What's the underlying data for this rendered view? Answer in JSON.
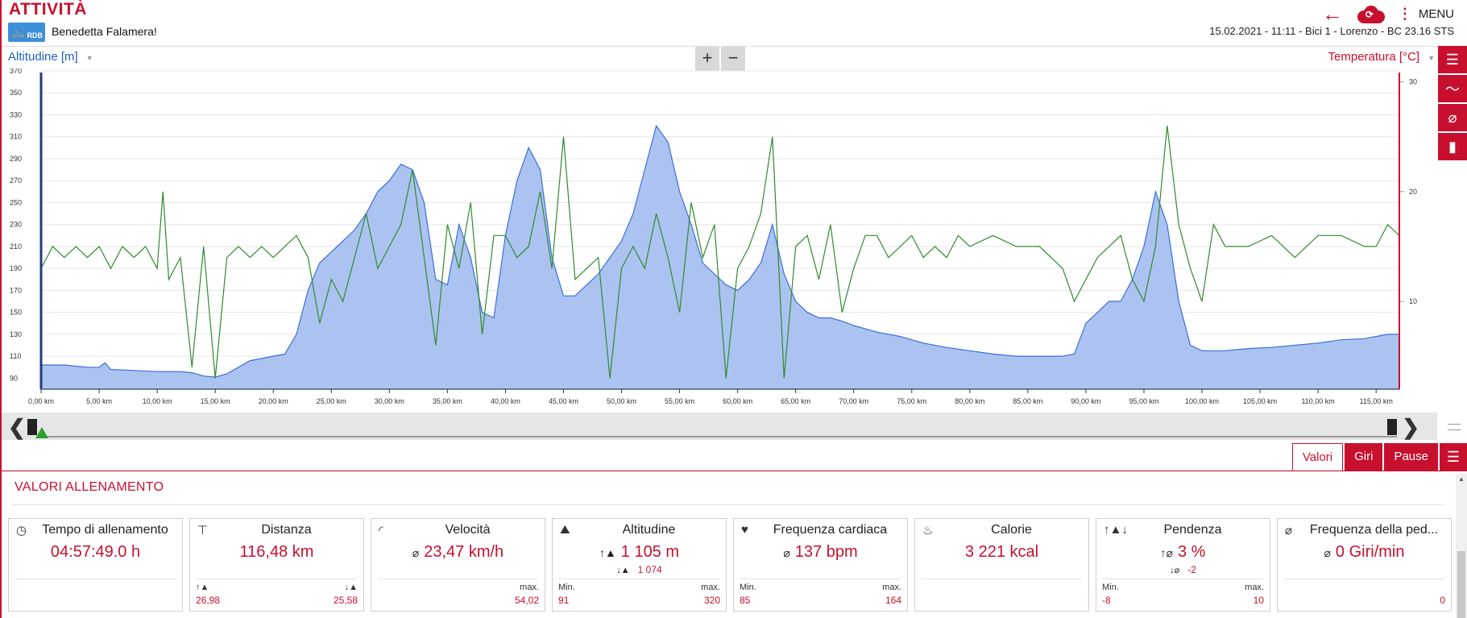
{
  "header": {
    "title": "ATTIVITÀ",
    "logo_text": "RDB",
    "user": "Benedetta Falamera!",
    "menu_label": "MENU",
    "session": "15.02.2021  -  11:11  -  Bici 1  -  Lorenzo  -  BC 23.16 STS"
  },
  "chart": {
    "left_selector": "Altitudine [m]",
    "right_selector": "Temperatura [°C]",
    "zoom_in": "+",
    "zoom_out": "−"
  },
  "chart_data": {
    "type": "area",
    "x_unit": "km",
    "xlim": [
      0,
      117
    ],
    "x_ticks": [
      "0,00 km",
      "5,00 km",
      "10,00 km",
      "15,00 km",
      "20,00 km",
      "25,00 km",
      "30,00 km",
      "35,00 km",
      "40,00 km",
      "45,00 km",
      "50,00 km",
      "55,00 km",
      "60,00 km",
      "65,00 km",
      "70,00 km",
      "75,00 km",
      "80,00 km",
      "85,00 km",
      "90,00 km",
      "95,00 km",
      "100,00 km",
      "105,00 km",
      "110,00 km",
      "115,00 km"
    ],
    "y_left": {
      "label": "Altitudine [m]",
      "ylim": [
        80,
        370
      ],
      "ticks": [
        90,
        110,
        130,
        150,
        170,
        190,
        210,
        230,
        250,
        270,
        290,
        310,
        330,
        350,
        370
      ]
    },
    "y_right": {
      "label": "Temperatura [°C]",
      "ylim": [
        2,
        31
      ],
      "ticks": [
        10,
        20,
        30
      ]
    },
    "series": [
      {
        "name": "Altitudine [m]",
        "color": "#a8c0f0",
        "stroke": "#3a6fd8",
        "x": [
          0,
          2,
          4,
          5,
          5.5,
          6,
          8,
          10,
          12,
          13,
          14,
          15,
          16,
          17,
          18,
          19,
          20,
          21,
          22,
          23,
          24,
          25,
          26,
          27,
          28,
          29,
          30,
          31,
          32,
          33,
          34,
          35,
          36,
          37,
          38,
          39,
          40,
          41,
          42,
          43,
          44,
          45,
          46,
          47,
          48,
          49,
          50,
          51,
          52,
          53,
          54,
          55,
          56,
          57,
          58,
          59,
          60,
          61,
          62,
          63,
          64,
          65,
          66,
          67,
          68,
          69,
          70,
          72,
          74,
          76,
          78,
          80,
          82,
          84,
          86,
          88,
          89,
          90,
          91,
          92,
          93,
          94,
          95,
          96,
          97,
          98,
          99,
          100,
          102,
          104,
          106,
          108,
          110,
          112,
          114,
          115,
          116,
          117
        ],
        "values": [
          102,
          102,
          100,
          100,
          104,
          98,
          97,
          96,
          96,
          95,
          92,
          91,
          94,
          100,
          106,
          108,
          110,
          112,
          130,
          170,
          195,
          205,
          215,
          225,
          240,
          260,
          270,
          285,
          280,
          250,
          180,
          175,
          230,
          200,
          150,
          145,
          220,
          270,
          300,
          280,
          200,
          165,
          165,
          175,
          185,
          200,
          215,
          240,
          280,
          320,
          305,
          260,
          230,
          195,
          185,
          175,
          170,
          180,
          195,
          230,
          185,
          160,
          150,
          145,
          145,
          142,
          138,
          132,
          128,
          122,
          118,
          115,
          112,
          110,
          110,
          110,
          112,
          140,
          150,
          160,
          160,
          180,
          210,
          260,
          230,
          160,
          120,
          115,
          115,
          117,
          118,
          120,
          122,
          125,
          126,
          128,
          130,
          130
        ]
      },
      {
        "name": "Temperatura [°C]",
        "color": "#2e8b2e",
        "x": [
          0,
          1,
          2,
          3,
          4,
          5,
          6,
          7,
          8,
          9,
          10,
          10.5,
          11,
          12,
          13,
          14,
          15,
          16,
          17,
          18,
          19,
          20,
          21,
          22,
          23,
          24,
          25,
          26,
          27,
          28,
          29,
          30,
          31,
          32,
          33,
          34,
          35,
          36,
          37,
          38,
          39,
          40,
          41,
          42,
          43,
          44,
          45,
          46,
          47,
          48,
          49,
          50,
          51,
          52,
          53,
          54,
          55,
          56,
          57,
          58,
          59,
          60,
          61,
          62,
          63,
          64,
          65,
          66,
          67,
          68,
          69,
          70,
          71,
          72,
          73,
          74,
          75,
          76,
          77,
          78,
          79,
          80,
          82,
          84,
          86,
          88,
          89,
          90,
          91,
          92,
          93,
          94,
          95,
          96,
          97,
          98,
          99,
          100,
          101,
          102,
          104,
          106,
          108,
          110,
          112,
          114,
          115,
          116,
          117
        ],
        "values": [
          13,
          15,
          14,
          15,
          14,
          15,
          13,
          15,
          14,
          15,
          13,
          20,
          12,
          14,
          4,
          15,
          3,
          14,
          15,
          14,
          15,
          14,
          15,
          16,
          14,
          8,
          12,
          10,
          14,
          18,
          13,
          15,
          17,
          22,
          14,
          6,
          17,
          13,
          19,
          7,
          16,
          16,
          14,
          15,
          20,
          13,
          25,
          12,
          13,
          14,
          3,
          13,
          15,
          13,
          18,
          14,
          9,
          19,
          14,
          17,
          3,
          13,
          15,
          18,
          25,
          3,
          15,
          16,
          12,
          17,
          9,
          13,
          16,
          16,
          14,
          15,
          16,
          14,
          15,
          14,
          16,
          15,
          16,
          15,
          15,
          13,
          10,
          12,
          14,
          15,
          16,
          12,
          10,
          15,
          26,
          17,
          13,
          10,
          17,
          15,
          15,
          16,
          14,
          16,
          16,
          15,
          15,
          17,
          16
        ]
      }
    ]
  },
  "tabs": [
    {
      "label": "Valori"
    },
    {
      "label": "Giri"
    },
    {
      "label": "Pause"
    }
  ],
  "section_title": "VALORI ALLENAMENTO",
  "cards": [
    {
      "title": "Tempo di allenamento",
      "main": "04:57:49.0 h"
    },
    {
      "title": "Distanza",
      "main": "116,48 km",
      "bl": "26,98",
      "br": "25,58"
    },
    {
      "title": "Velocità",
      "main_pre": "⌀",
      "main": "23,47 km/h",
      "br_cap": "max.",
      "br": "54,02"
    },
    {
      "title": "Altitudine",
      "main_pre": "↑▲",
      "main": "1 105 m",
      "sub_pre": "↓▲",
      "sub": "1 074",
      "bl_cap": "Min.",
      "bl": "91",
      "br_cap": "max.",
      "br": "320"
    },
    {
      "title": "Frequenza cardiaca",
      "main_pre": "⌀",
      "main": "137 bpm",
      "bl_cap": "Min.",
      "bl": "85",
      "br_cap": "max.",
      "br": "164"
    },
    {
      "title": "Calorie",
      "main": "3 221 kcal"
    },
    {
      "title": "Pendenza",
      "main_pre": "↑⌀",
      "main": "3 %",
      "sub_pre": "↓⌀",
      "sub": "-2",
      "bl_cap": "Min.",
      "bl": "-8",
      "br_cap": "max.",
      "br": "10"
    },
    {
      "title": "Frequenza della ped...",
      "main_pre": "⌀",
      "main": "0 Giri/min",
      "br": "0"
    }
  ]
}
